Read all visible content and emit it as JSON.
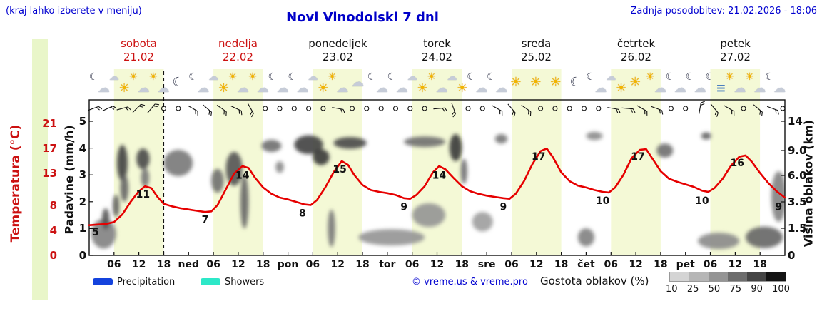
{
  "header": {
    "hint": "(kraj lahko izberete v meniju)",
    "title": "Novi Vinodolski 7 dni",
    "updated": "Zadnja posodobitev: 21.02.2026 - 18:06"
  },
  "days": [
    {
      "name": "sobota",
      "date": "21.02",
      "color": "#cc1111"
    },
    {
      "name": "nedelja",
      "date": "22.02",
      "color": "#cc1111"
    },
    {
      "name": "ponedeljek",
      "date": "23.02",
      "color": "#111111"
    },
    {
      "name": "torek",
      "date": "24.02",
      "color": "#111111"
    },
    {
      "name": "sreda",
      "date": "25.02",
      "color": "#111111"
    },
    {
      "name": "četrtek",
      "date": "26.02",
      "color": "#111111"
    },
    {
      "name": "petek",
      "date": "27.02",
      "color": "#111111"
    }
  ],
  "axes": {
    "temperature": {
      "label": "Temperatura (°C)",
      "ticks": [
        "21",
        "17",
        "13",
        "8",
        "4",
        "0"
      ],
      "color": "#cc1111"
    },
    "precipitation": {
      "label": "Padavine (mm/h)",
      "ticks": [
        "5",
        "4",
        "3",
        "2",
        "1",
        "0"
      ]
    },
    "cloud_height": {
      "label": "Višina oblakov (km)",
      "ticks": [
        "14",
        "9.0",
        "6.0",
        "3.5",
        "1.5",
        "0"
      ]
    }
  },
  "x_axis": {
    "labels": [
      "06",
      "12",
      "18",
      "ned",
      "06",
      "12",
      "18",
      "pon",
      "06",
      "12",
      "18",
      "tor",
      "06",
      "12",
      "18",
      "sre",
      "06",
      "12",
      "18",
      "čet",
      "06",
      "12",
      "18",
      "pet",
      "06",
      "12",
      "18"
    ]
  },
  "legend": {
    "precipitation": {
      "label": "Precipitation",
      "color": "#1443dd"
    },
    "showers": {
      "label": "Showers",
      "color": "#2de8c8"
    },
    "credit": "© vreme.us & vreme.pro",
    "cloud_density": {
      "label": "Gostota oblakov (%)",
      "ticks": [
        "10",
        "25",
        "50",
        "75",
        "90",
        "100"
      ],
      "colors": [
        "#d4d4d4",
        "#b6b6b6",
        "#959595",
        "#6d6d6d",
        "#454545",
        "#141414"
      ]
    }
  },
  "chart_data": {
    "type": "meteogram",
    "x_hours_range": [
      0,
      168
    ],
    "now_hour": 18,
    "colors": {
      "day_band": "#f4f9d6",
      "curve": "#e60000"
    },
    "day_bands": [
      [
        6,
        18
      ],
      [
        30,
        42
      ],
      [
        54,
        66
      ],
      [
        78,
        90
      ],
      [
        102,
        114
      ],
      [
        126,
        138
      ],
      [
        150,
        162
      ]
    ],
    "temperature_series": {
      "name": "Temperatura (°C)",
      "color": "#e60000",
      "points": [
        [
          0,
          4.8
        ],
        [
          2,
          4.9
        ],
        [
          4,
          5
        ],
        [
          6,
          5.3
        ],
        [
          8,
          6.5
        ],
        [
          10,
          8.5
        ],
        [
          12,
          10.2
        ],
        [
          13.5,
          11
        ],
        [
          15,
          10.7
        ],
        [
          16.5,
          9.3
        ],
        [
          18,
          8.2
        ],
        [
          20,
          7.8
        ],
        [
          22,
          7.5
        ],
        [
          24,
          7.3
        ],
        [
          26,
          7.1
        ],
        [
          28,
          6.9
        ],
        [
          29.5,
          7
        ],
        [
          31,
          8
        ],
        [
          33,
          10.5
        ],
        [
          35,
          13
        ],
        [
          37,
          14.2
        ],
        [
          38.5,
          13.9
        ],
        [
          40,
          12.4
        ],
        [
          42,
          10.8
        ],
        [
          44,
          9.8
        ],
        [
          46,
          9.2
        ],
        [
          48,
          8.9
        ],
        [
          50,
          8.5
        ],
        [
          52,
          8.1
        ],
        [
          53.5,
          8
        ],
        [
          55,
          8.8
        ],
        [
          57,
          10.8
        ],
        [
          59,
          13.2
        ],
        [
          61,
          15
        ],
        [
          62.5,
          14.4
        ],
        [
          64,
          12.8
        ],
        [
          66,
          11.2
        ],
        [
          68,
          10.4
        ],
        [
          70,
          10.1
        ],
        [
          72,
          9.9
        ],
        [
          74,
          9.6
        ],
        [
          76,
          9.1
        ],
        [
          77.5,
          9
        ],
        [
          79,
          9.6
        ],
        [
          81,
          11
        ],
        [
          83,
          13.2
        ],
        [
          84.5,
          14.2
        ],
        [
          86,
          13.7
        ],
        [
          88,
          12.3
        ],
        [
          90,
          11
        ],
        [
          92,
          10.2
        ],
        [
          94,
          9.8
        ],
        [
          96,
          9.5
        ],
        [
          98,
          9.3
        ],
        [
          100,
          9.1
        ],
        [
          101.5,
          9
        ],
        [
          103,
          9.8
        ],
        [
          105,
          11.8
        ],
        [
          107,
          14.5
        ],
        [
          109,
          16.6
        ],
        [
          110.5,
          17
        ],
        [
          112,
          15.6
        ],
        [
          114,
          13.2
        ],
        [
          116,
          11.8
        ],
        [
          118,
          11.1
        ],
        [
          120,
          10.8
        ],
        [
          122,
          10.4
        ],
        [
          124,
          10.1
        ],
        [
          125.5,
          10
        ],
        [
          127,
          10.8
        ],
        [
          129,
          12.8
        ],
        [
          131,
          15.5
        ],
        [
          133,
          16.8
        ],
        [
          134.5,
          16.9
        ],
        [
          136,
          15.4
        ],
        [
          138,
          13.4
        ],
        [
          140,
          12.2
        ],
        [
          142,
          11.7
        ],
        [
          144,
          11.3
        ],
        [
          146,
          10.9
        ],
        [
          148,
          10.3
        ],
        [
          149.5,
          10.1
        ],
        [
          151,
          10.7
        ],
        [
          153,
          12.2
        ],
        [
          155,
          14.3
        ],
        [
          157,
          15.7
        ],
        [
          158.5,
          15.9
        ],
        [
          160,
          14.9
        ],
        [
          162,
          13.1
        ],
        [
          164,
          11.5
        ],
        [
          166,
          10.2
        ],
        [
          168,
          9.2
        ]
      ]
    },
    "temperature_labels": [
      [
        1.5,
        5
      ],
      [
        13,
        11
      ],
      [
        28,
        7
      ],
      [
        37,
        14
      ],
      [
        51.5,
        8
      ],
      [
        60.5,
        15
      ],
      [
        76,
        9
      ],
      [
        84.5,
        14
      ],
      [
        100,
        9
      ],
      [
        108.5,
        17
      ],
      [
        124,
        10
      ],
      [
        132.5,
        17
      ],
      [
        148,
        10
      ],
      [
        156.5,
        16
      ],
      [
        166.5,
        9
      ]
    ],
    "cloud_blobs": [
      [
        3.5,
        1.2,
        3,
        0.9,
        0.45
      ],
      [
        4,
        2.2,
        0.9,
        0.8,
        0.7
      ],
      [
        6.5,
        3.2,
        0.8,
        0.9,
        0.65
      ],
      [
        8,
        7.5,
        1.3,
        2.2,
        0.8
      ],
      [
        8.5,
        4.8,
        1,
        1.3,
        0.6
      ],
      [
        13,
        8,
        1.6,
        1.3,
        0.75
      ],
      [
        13.5,
        5.8,
        1,
        1,
        0.5
      ],
      [
        21.5,
        7.5,
        3.5,
        1.6,
        0.5
      ],
      [
        31,
        5.5,
        1.5,
        1.2,
        0.55
      ],
      [
        35,
        6.8,
        2,
        1.9,
        0.7
      ],
      [
        37.5,
        3.5,
        1,
        2.2,
        0.6
      ],
      [
        44,
        9.8,
        2.4,
        1,
        0.55
      ],
      [
        46,
        7,
        1,
        0.7,
        0.4
      ],
      [
        53,
        10,
        3.5,
        1.5,
        0.8
      ],
      [
        56,
        8.2,
        2,
        1,
        0.85
      ],
      [
        63,
        10.3,
        4,
        1,
        0.75
      ],
      [
        58.5,
        1.5,
        0.9,
        1.2,
        0.5
      ],
      [
        73,
        1,
        8,
        0.45,
        0.35
      ],
      [
        81,
        10.5,
        5,
        0.9,
        0.55
      ],
      [
        88.5,
        9.5,
        1.5,
        2,
        0.85
      ],
      [
        90.5,
        6.5,
        0.8,
        1.4,
        0.55
      ],
      [
        82,
        2.5,
        4,
        0.9,
        0.35
      ],
      [
        95,
        2,
        2.5,
        0.7,
        0.3
      ],
      [
        99.5,
        11,
        1.5,
        0.8,
        0.5
      ],
      [
        120,
        1,
        2,
        0.5,
        0.45
      ],
      [
        122,
        11.5,
        2,
        0.7,
        0.4
      ],
      [
        139,
        9,
        2,
        1,
        0.55
      ],
      [
        149,
        11.5,
        1.2,
        0.6,
        0.65
      ],
      [
        152,
        0.8,
        5,
        0.45,
        0.4
      ],
      [
        163,
        1,
        4.5,
        0.6,
        0.6
      ],
      [
        166.5,
        4,
        1.8,
        2.2,
        0.45
      ]
    ],
    "wind": [
      [
        1,
        "b",
        70
      ],
      [
        4.5,
        "b",
        65
      ],
      [
        8,
        "b",
        75
      ],
      [
        11.5,
        "b",
        45
      ],
      [
        15,
        "b",
        40
      ],
      [
        18,
        "o"
      ],
      [
        21.5,
        "o"
      ],
      [
        25,
        "b",
        120
      ],
      [
        28.5,
        "b",
        130
      ],
      [
        32,
        "b",
        125
      ],
      [
        35.5,
        "b",
        115
      ],
      [
        39,
        "b",
        150
      ],
      [
        42.5,
        "o"
      ],
      [
        46,
        "o"
      ],
      [
        49.5,
        "o"
      ],
      [
        53,
        "o"
      ],
      [
        56.5,
        "o"
      ],
      [
        60,
        "b",
        100
      ],
      [
        63.5,
        "o"
      ],
      [
        67,
        "o"
      ],
      [
        70.5,
        "o"
      ],
      [
        74,
        "o"
      ],
      [
        77.5,
        "o"
      ],
      [
        81,
        "o"
      ],
      [
        84.5,
        "b",
        85
      ],
      [
        88,
        "b",
        160
      ],
      [
        91.5,
        "o"
      ],
      [
        95,
        "o"
      ],
      [
        98.5,
        "b",
        120
      ],
      [
        102,
        "b",
        140
      ],
      [
        105.5,
        "b",
        125
      ],
      [
        109,
        "o"
      ],
      [
        112.5,
        "o"
      ],
      [
        116,
        "o"
      ],
      [
        119.5,
        "o"
      ],
      [
        123,
        "o"
      ],
      [
        126.5,
        "b",
        100
      ],
      [
        130,
        "b",
        95
      ],
      [
        133.5,
        "b",
        120
      ],
      [
        137,
        "b",
        110
      ],
      [
        140.5,
        "o"
      ],
      [
        144,
        "o"
      ],
      [
        147.5,
        "b",
        10
      ],
      [
        151,
        "b",
        140
      ],
      [
        154.5,
        "b",
        120
      ],
      [
        158,
        "o"
      ],
      [
        161.5,
        "b",
        130
      ],
      [
        165,
        "b",
        110
      ],
      [
        167.5,
        "o"
      ]
    ],
    "weather_icons": [
      [
        "moon-cloud",
        "cloud-sun",
        "sun-cloud",
        "sun-cloud",
        "moon"
      ],
      [
        "moon-cloud",
        "cloud-sun",
        "sun-cloud",
        "sun-cloud",
        "moon-cloud"
      ],
      [
        "moon-cloud",
        "cloud-sun",
        "sun-cloud",
        "cloud",
        "moon-cloud"
      ],
      [
        "moon-cloud",
        "cloud-sun",
        "sun-cloud",
        "cloud-sun",
        "moon-cloud"
      ],
      [
        "moon-cloud",
        "sun",
        "sun",
        "sun",
        "moon"
      ],
      [
        "moon-cloud",
        "cloud-sun",
        "sun",
        "sun-cloud",
        "moon-cloud"
      ],
      [
        "moon-cloud",
        "moon-fog",
        "sun-cloud",
        "sun-cloud",
        "moon-cloud"
      ]
    ]
  }
}
